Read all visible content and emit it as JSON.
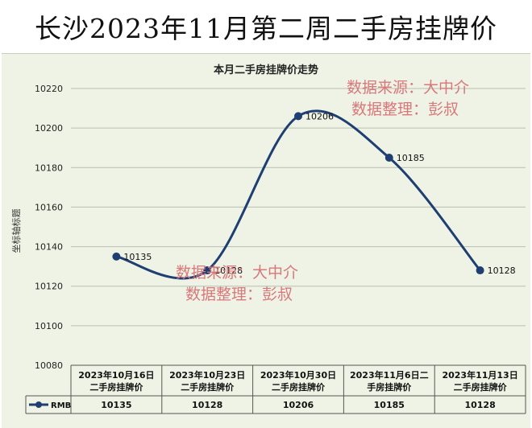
{
  "banner_title": "长沙2023年11月第二周二手房挂牌价",
  "watermark": {
    "line1": "数据来源：大中介",
    "line2": "数据整理：彭叔"
  },
  "colors": {
    "line": "#1f3f73",
    "panel": "#eef3e5",
    "watermark": "#d9777b",
    "grid": "#b9bfb0"
  },
  "chart_data": {
    "type": "line",
    "title": "本月二手房挂牌价走势",
    "ylabel": "坐标轴标题",
    "ylim": [
      10080,
      10220
    ],
    "yticks": [
      10080,
      10100,
      10120,
      10140,
      10160,
      10180,
      10200,
      10220
    ],
    "grid": true,
    "smooth": true,
    "categories": [
      "2023年10月16日二手房挂牌价",
      "2023年10月23日二手房挂牌价",
      "2023年10月30日二手房挂牌价",
      "2023年11月6日二手房挂牌价",
      "2023年11月13日二手房挂牌价"
    ],
    "category_lines": [
      [
        "2023年10月16日",
        "二手房挂牌价"
      ],
      [
        "2023年10月23日",
        "二手房挂牌价"
      ],
      [
        "2023年10月30日",
        "二手房挂牌价"
      ],
      [
        "2023年11月6日二",
        "手房挂牌价"
      ],
      [
        "2023年11月13日",
        "二手房挂牌价"
      ]
    ],
    "series": [
      {
        "name": "RMB",
        "values": [
          10135,
          10128,
          10206,
          10185,
          10128
        ]
      }
    ],
    "data_labels": [
      "10135",
      "10128",
      "10206",
      "10185",
      "10128"
    ]
  }
}
